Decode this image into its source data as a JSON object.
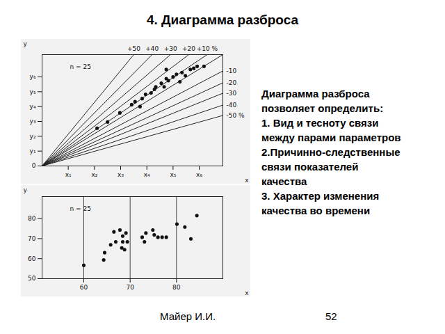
{
  "title": "4. Диаграмма разброса",
  "text": [
    "Диаграмма разброса",
    "позволяет определить:",
    "1. Вид и тесноту связи",
    "между парами параметров",
    "2.Причинно-следственные",
    "связи показателей",
    "качества",
    "3. Характер изменения",
    "качества во времени"
  ],
  "footer": {
    "author": "Майер И.И.",
    "page": 52
  },
  "chart_data": [
    {
      "type": "scatter",
      "annotation": "n = 25",
      "x_label": "x",
      "y_label": "y",
      "color": "#111111",
      "marker": "circle",
      "x": [
        2.1,
        2.5,
        2.97,
        3.42,
        3.55,
        3.74,
        3.82,
        3.95,
        4.16,
        4.29,
        4.34,
        4.55,
        4.66,
        4.74,
        4.82,
        5.0,
        5.13,
        5.26,
        5.34,
        5.47,
        5.66,
        5.79,
        5.92,
        6.18,
        4.74
      ],
      "values": [
        2.54,
        2.96,
        3.58,
        4.13,
        4.33,
        4.0,
        4.54,
        4.83,
        4.92,
        5.17,
        5.33,
        5.58,
        5.33,
        5.88,
        5.75,
        6.0,
        6.17,
        5.67,
        6.29,
        6.08,
        6.5,
        6.58,
        6.71,
        6.71,
        6.5
      ],
      "xlim": [
        0,
        6.9
      ],
      "xticks": [
        {
          "value": 1,
          "label": "x₁"
        },
        {
          "value": 2,
          "label": "x₂"
        },
        {
          "value": 3,
          "label": "x₃"
        },
        {
          "value": 4,
          "label": "x₄"
        },
        {
          "value": 5,
          "label": "x₅"
        },
        {
          "value": 6,
          "label": "x₆"
        }
      ],
      "ylim": [
        0,
        7.5
      ],
      "yticks": [
        0,
        {
          "value": 1,
          "label": "y₁"
        },
        {
          "value": 2,
          "label": "y₂"
        },
        {
          "value": 3,
          "label": "y₃"
        },
        {
          "value": 4,
          "label": "y₄"
        },
        {
          "value": 5,
          "label": "y₅"
        },
        {
          "value": 6,
          "label": "y₆"
        }
      ],
      "reference_lines": [
        {
          "label": "+50",
          "x_end": 3.5,
          "y_end": 7.5
        },
        {
          "label": "+40",
          "x_end": 4.2,
          "y_end": 7.5
        },
        {
          "label": "+30",
          "x_end": 4.9,
          "y_end": 7.5
        },
        {
          "label": "+20",
          "x_end": 5.6,
          "y_end": 7.5
        },
        {
          "label": "+10 %",
          "x_end": 6.3,
          "y_end": 7.5
        },
        {
          "label": null,
          "x_end": 6.9,
          "y_end": 7.5
        },
        {
          "label": "-10",
          "x_end": 6.9,
          "y_end": 6.4
        },
        {
          "label": "-20",
          "x_end": 6.9,
          "y_end": 5.6
        },
        {
          "label": "-30",
          "x_end": 6.9,
          "y_end": 4.9
        },
        {
          "label": "-40",
          "x_end": 6.9,
          "y_end": 4.1
        },
        {
          "label": "-50 %",
          "x_end": 6.9,
          "y_end": 3.4
        }
      ]
    },
    {
      "type": "scatter",
      "annotation": "n = 25",
      "x_label": "x",
      "y_label": "y",
      "color": "#111111",
      "marker": "circle",
      "grid": "x",
      "x": [
        60,
        64.3,
        64.5,
        65.8,
        66.9,
        66.5,
        67.8,
        68.2,
        68.4,
        68.4,
        68.8,
        69.1,
        69.4,
        72.6,
        73.1,
        73.4,
        74.9,
        75.2,
        76.0,
        76.9,
        77.8,
        80.1,
        81.8,
        83.1,
        84.4
      ],
      "values": [
        56.7,
        59.4,
        63.0,
        66.9,
        68.4,
        73.4,
        74.3,
        65.4,
        68.4,
        71.3,
        64.5,
        72.8,
        68.4,
        70.7,
        68.4,
        72.8,
        74.3,
        71.9,
        70.7,
        70.7,
        70.7,
        77.3,
        75.8,
        69.9,
        81.5
      ],
      "xlim": [
        51,
        90
      ],
      "xticks": [
        60,
        70,
        80
      ],
      "ylim": [
        50,
        91
      ],
      "yticks": [
        50,
        60,
        70,
        80
      ]
    }
  ]
}
